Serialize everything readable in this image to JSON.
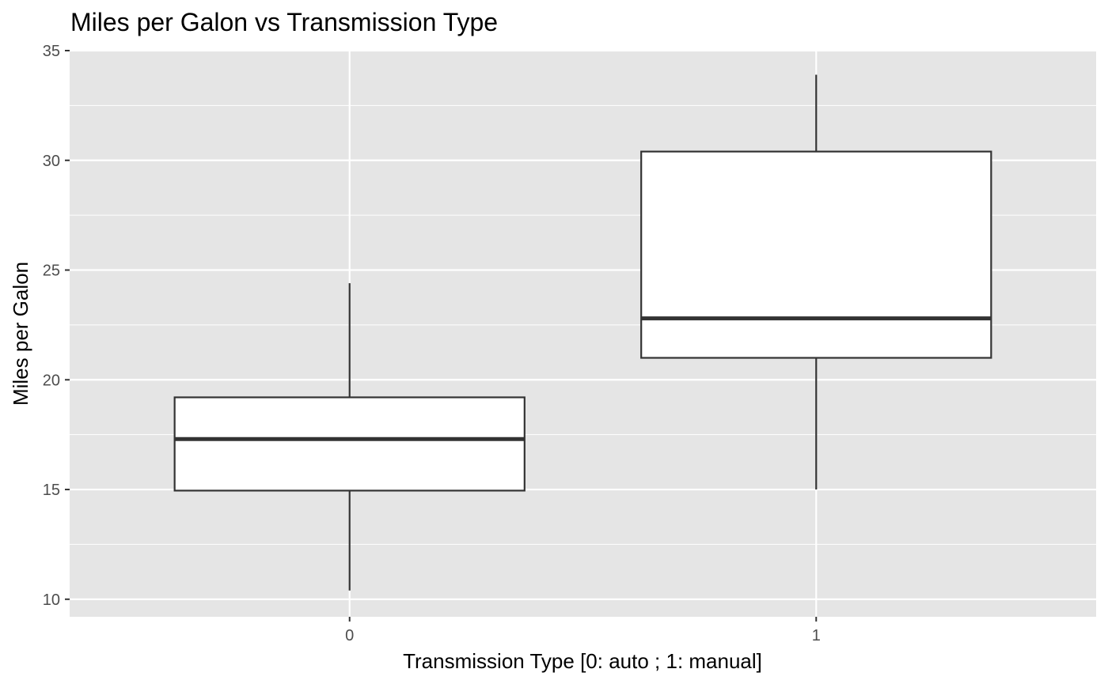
{
  "chart_data": {
    "type": "boxplot",
    "title": "Miles per Galon vs Transmission Type",
    "xlabel": "Transmission Type [0: auto ; 1: manual]",
    "ylabel": "Miles per Galon",
    "categories": [
      "0",
      "1"
    ],
    "ylim": [
      9.2,
      35
    ],
    "yticks": [
      10,
      15,
      20,
      25,
      30,
      35
    ],
    "grid": true,
    "background": "#e5e5e5",
    "box_fill": "#ffffff",
    "line_color": "#333333",
    "boxes": [
      {
        "category": "0",
        "min": 10.4,
        "q1": 14.95,
        "median": 17.3,
        "q3": 19.2,
        "max": 24.4
      },
      {
        "category": "1",
        "min": 15.0,
        "q1": 21.0,
        "median": 22.8,
        "q3": 30.4,
        "max": 33.9
      }
    ]
  }
}
